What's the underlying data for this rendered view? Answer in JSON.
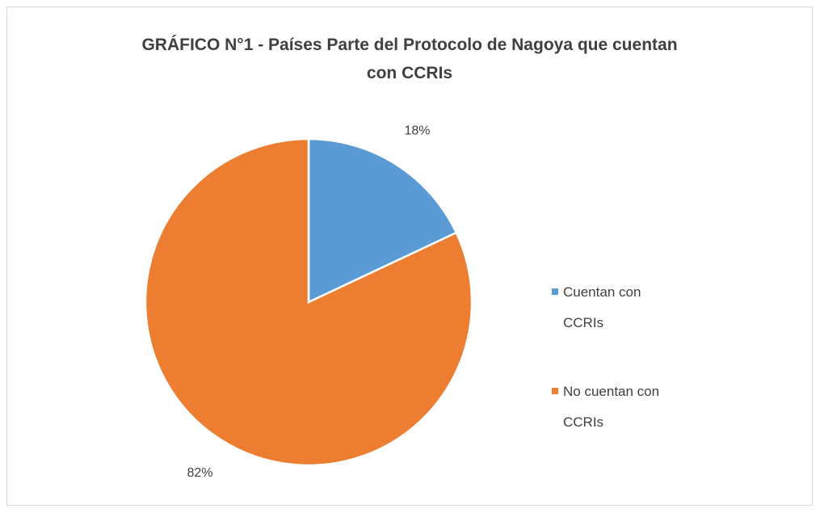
{
  "chart_data": {
    "type": "pie",
    "title": "GRÁFICO N°1 - Países Parte del Protocolo de Nagoya que cuentan con CCRIs",
    "categories": [
      "Cuentan con CCRIs",
      "No cuentan con CCRIs"
    ],
    "values": [
      18,
      82
    ],
    "value_labels": [
      "18%",
      "82%"
    ],
    "colors": [
      "#5b9bd5",
      "#ed7d31"
    ],
    "legend": "right"
  }
}
